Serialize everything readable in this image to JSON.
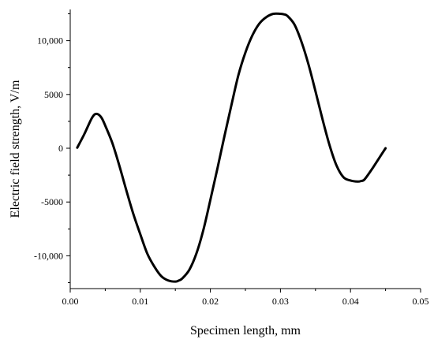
{
  "chart_data": {
    "type": "line",
    "title": "",
    "xlabel": "Specimen length, mm",
    "ylabel": "Electric field strength, V/m",
    "xlim": [
      0,
      0.05
    ],
    "ylim": [
      -12500,
      12500
    ],
    "x_ticks": [
      0,
      0.01,
      0.02,
      0.03,
      0.04,
      0.05
    ],
    "x_tick_labels": [
      "0.00",
      "0.01",
      "0.02",
      "0.03",
      "0.04",
      "0.05"
    ],
    "y_ticks": [
      -10000,
      -5000,
      0,
      5000,
      10000
    ],
    "y_tick_labels": [
      "-10,000",
      "-5000",
      "0",
      "5000",
      "10,000"
    ],
    "grid": false,
    "legend": "none",
    "series": [
      {
        "color": "#000000",
        "x": [
          0.001,
          0.002,
          0.003,
          0.0035,
          0.004,
          0.0045,
          0.005,
          0.006,
          0.007,
          0.008,
          0.009,
          0.01,
          0.011,
          0.012,
          0.013,
          0.014,
          0.015,
          0.0155,
          0.016,
          0.017,
          0.018,
          0.019,
          0.02,
          0.021,
          0.022,
          0.023,
          0.024,
          0.025,
          0.026,
          0.027,
          0.028,
          0.029,
          0.03,
          0.0305,
          0.031,
          0.032,
          0.033,
          0.034,
          0.035,
          0.036,
          0.037,
          0.038,
          0.039,
          0.04,
          0.041,
          0.0415,
          0.042,
          0.043,
          0.044,
          0.045
        ],
        "y": [
          50,
          1300,
          2700,
          3150,
          3150,
          2800,
          2100,
          500,
          -1600,
          -3900,
          -6100,
          -8000,
          -9800,
          -11000,
          -11900,
          -12300,
          -12400,
          -12300,
          -12100,
          -11300,
          -9800,
          -7600,
          -4800,
          -1900,
          1100,
          4000,
          6800,
          8900,
          10500,
          11600,
          12200,
          12500,
          12500,
          12450,
          12300,
          11500,
          9900,
          7800,
          5300,
          2700,
          300,
          -1600,
          -2700,
          -3000,
          -3100,
          -3050,
          -2900,
          -2000,
          -1000,
          0
        ]
      }
    ]
  }
}
